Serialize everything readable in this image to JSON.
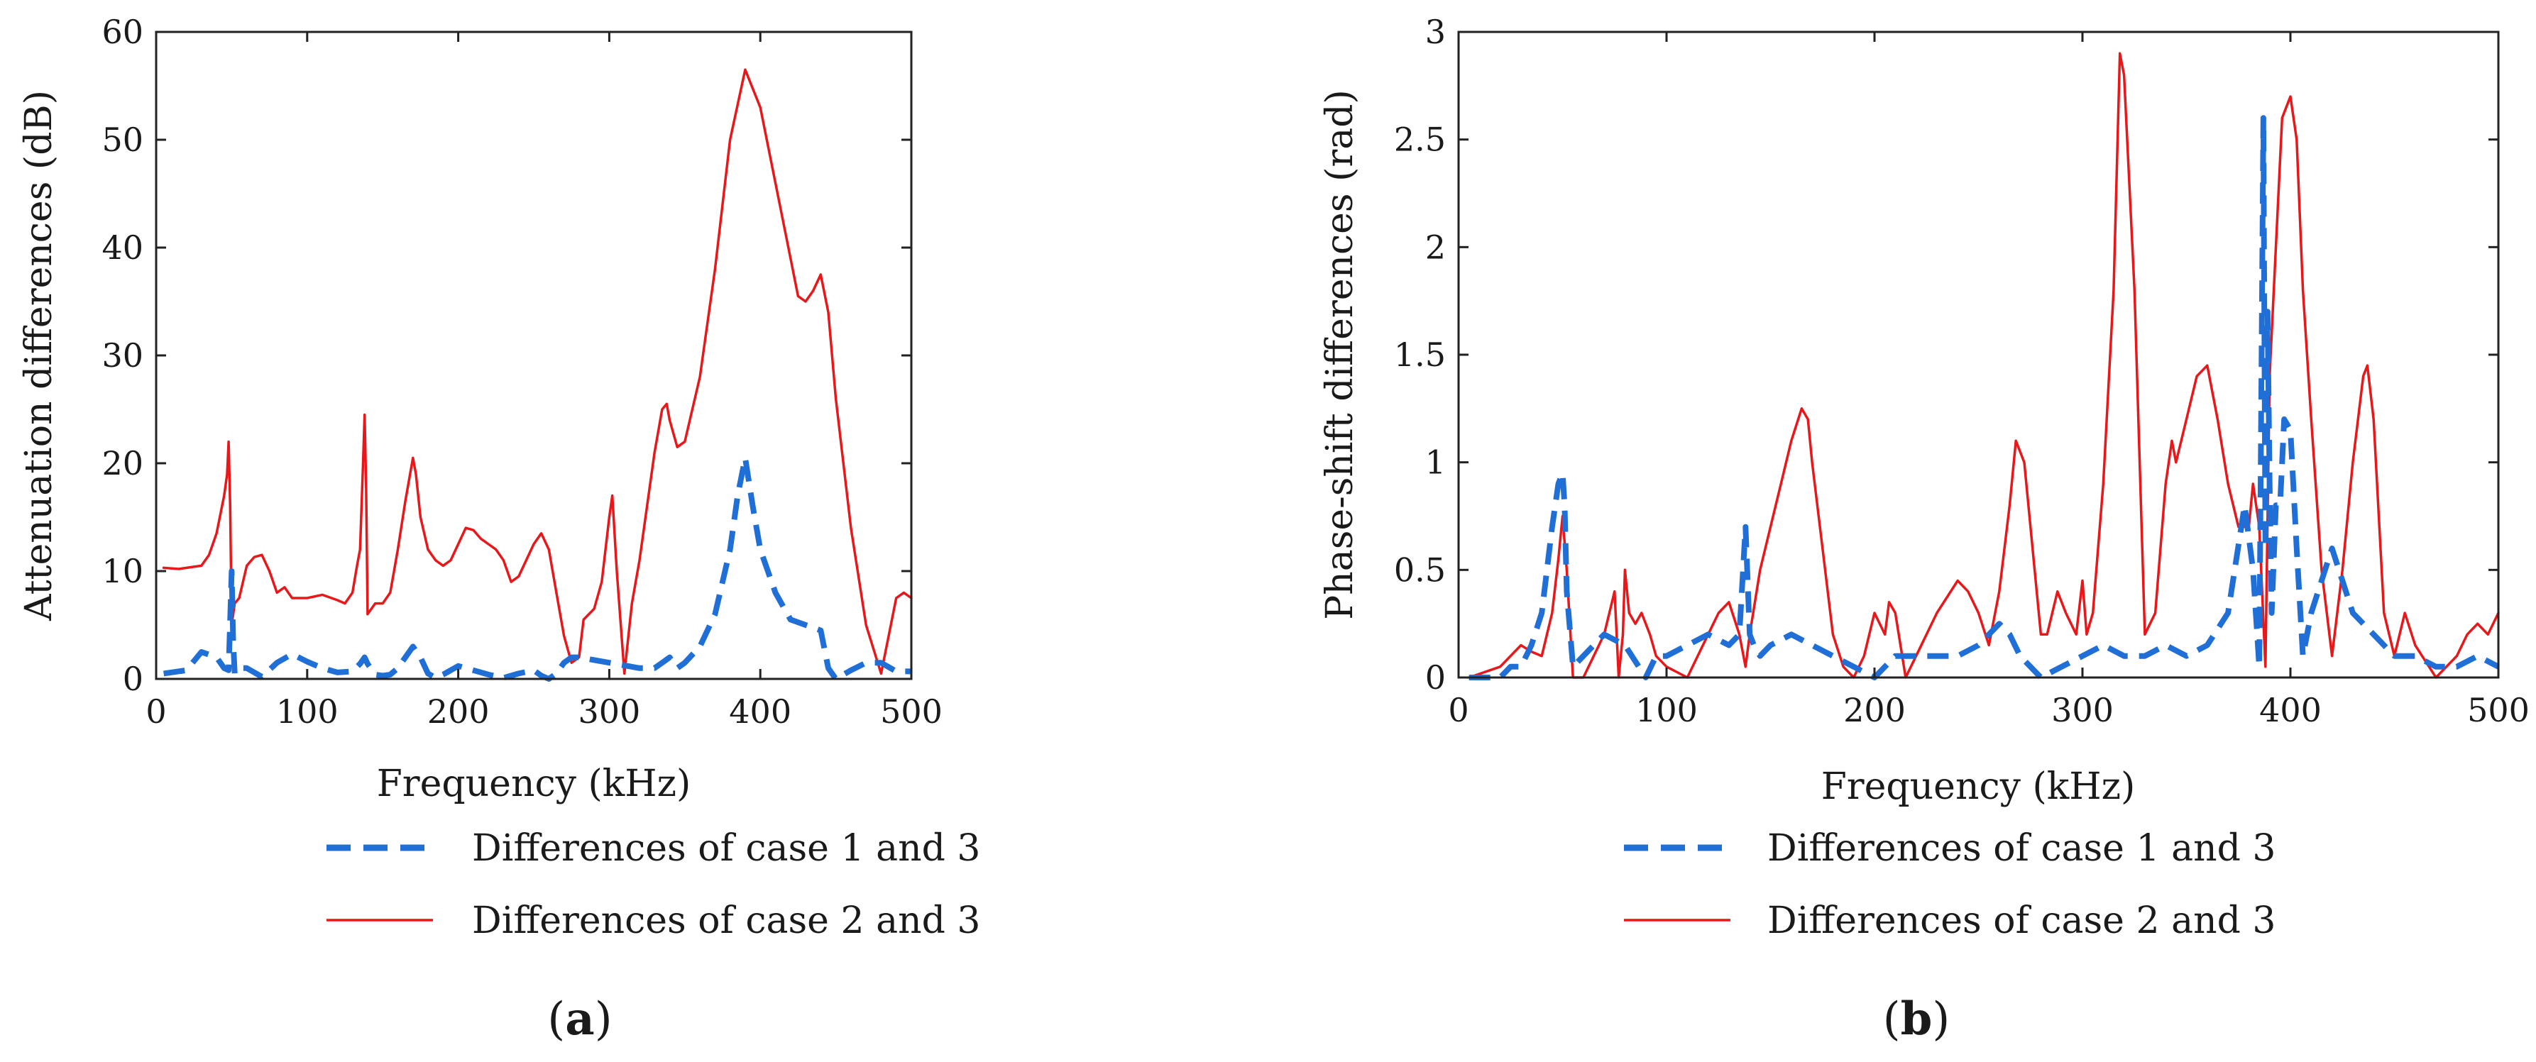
{
  "chart_data": [
    {
      "type": "line",
      "caption": "(a)",
      "caption_letter": "a",
      "xlabel": "Frequency (kHz)",
      "ylabel": "Attenuation differences (dB)",
      "xlim": [
        0,
        500
      ],
      "ylim": [
        0,
        60
      ],
      "xticks": [
        0,
        100,
        200,
        300,
        400,
        500
      ],
      "yticks": [
        0,
        10,
        20,
        30,
        40,
        50,
        60
      ],
      "ytick_labels": [
        "0",
        "10",
        "20",
        "30",
        "40",
        "50",
        "60"
      ],
      "legend_position": "below",
      "series": [
        {
          "name": "Differences of case 1 and 3",
          "color": "#1f6fd6",
          "style": "dashed",
          "x": [
            5,
            20,
            30,
            40,
            45,
            48,
            50,
            51,
            52,
            55,
            60,
            70,
            80,
            90,
            100,
            110,
            120,
            130,
            135,
            138,
            140,
            145,
            150,
            155,
            160,
            165,
            170,
            175,
            180,
            185,
            190,
            200,
            210,
            220,
            230,
            240,
            250,
            255,
            260,
            265,
            270,
            275,
            280,
            300,
            320,
            330,
            335,
            340,
            345,
            350,
            360,
            370,
            380,
            385,
            390,
            395,
            400,
            410,
            420,
            430,
            440,
            445,
            450,
            460,
            470,
            480,
            490,
            500
          ],
          "y": [
            0.5,
            0.8,
            2.5,
            2.0,
            1.0,
            0.8,
            10.0,
            3.5,
            0.5,
            1.0,
            1.0,
            0.2,
            1.5,
            2.3,
            1.6,
            1.0,
            0.6,
            0.7,
            1.4,
            2.0,
            1.4,
            0.4,
            0.3,
            0.4,
            1.0,
            2.0,
            3.0,
            2.0,
            0.5,
            0.1,
            0.4,
            1.2,
            0.8,
            0.4,
            0.1,
            0.5,
            0.8,
            0.3,
            0.0,
            0.5,
            1.5,
            2.0,
            2.0,
            1.5,
            1.0,
            1.0,
            1.5,
            2.0,
            1.0,
            1.5,
            3.0,
            6.0,
            12.0,
            17.0,
            20.5,
            16.0,
            12.0,
            8.0,
            5.5,
            5.0,
            4.5,
            1.0,
            0.0,
            0.8,
            1.5,
            1.5,
            0.7,
            0.7
          ]
        },
        {
          "name": "Differences of case 2 and 3",
          "color": "#e8181a",
          "style": "solid",
          "x": [
            5,
            15,
            25,
            30,
            35,
            40,
            45,
            47,
            48,
            49,
            50,
            52,
            55,
            60,
            65,
            70,
            75,
            80,
            85,
            90,
            95,
            100,
            110,
            120,
            125,
            130,
            133,
            135,
            137,
            138,
            139,
            140,
            145,
            150,
            155,
            160,
            165,
            170,
            172,
            175,
            180,
            185,
            190,
            195,
            200,
            205,
            210,
            215,
            220,
            225,
            230,
            235,
            240,
            245,
            250,
            255,
            260,
            265,
            270,
            275,
            280,
            283,
            290,
            295,
            300,
            302,
            305,
            310,
            315,
            320,
            325,
            330,
            335,
            338,
            340,
            345,
            350,
            360,
            370,
            380,
            390,
            400,
            410,
            420,
            425,
            430,
            435,
            440,
            445,
            450,
            460,
            470,
            480,
            485,
            490,
            495,
            500
          ],
          "y": [
            10.3,
            10.2,
            10.4,
            10.5,
            11.5,
            13.5,
            17.0,
            19.0,
            22.0,
            16.0,
            5.0,
            7.0,
            7.5,
            10.5,
            11.3,
            11.5,
            10.0,
            8.0,
            8.5,
            7.5,
            7.5,
            7.5,
            7.8,
            7.3,
            7.0,
            8.0,
            10.5,
            12.0,
            20.0,
            24.5,
            18.0,
            6.0,
            7.0,
            7.0,
            8.0,
            12.0,
            16.5,
            20.5,
            19.0,
            15.0,
            12.0,
            11.0,
            10.5,
            11.0,
            12.5,
            14.0,
            13.8,
            13.0,
            12.5,
            12.0,
            11.0,
            9.0,
            9.5,
            11.0,
            12.5,
            13.5,
            12.0,
            8.0,
            4.0,
            1.5,
            2.0,
            5.5,
            6.5,
            9.0,
            15.0,
            17.0,
            10.0,
            0.5,
            7.0,
            11.0,
            16.0,
            21.0,
            25.0,
            25.5,
            24.0,
            21.5,
            22.0,
            28.0,
            38.0,
            50.0,
            56.5,
            53.0,
            46.0,
            39.0,
            35.5,
            35.0,
            36.0,
            37.5,
            34.0,
            26.0,
            14.0,
            5.0,
            0.5,
            4.0,
            7.5,
            8.0,
            7.5
          ]
        }
      ]
    },
    {
      "type": "line",
      "caption": "(b)",
      "caption_letter": "b",
      "xlabel": "Frequency (kHz)",
      "ylabel": "Phase-shift differences (rad)",
      "xlim": [
        0,
        500
      ],
      "ylim": [
        0,
        3
      ],
      "xticks": [
        0,
        100,
        200,
        300,
        400,
        500
      ],
      "yticks": [
        0,
        0.5,
        1,
        1.5,
        2,
        2.5,
        3
      ],
      "ytick_labels": [
        "0",
        "0.5",
        "1",
        "1.5",
        "2",
        "2.5",
        "3"
      ],
      "legend_position": "below",
      "series": [
        {
          "name": "Differences of case 1 and 3",
          "color": "#1f6fd6",
          "style": "dashed",
          "x": [
            5,
            15,
            20,
            25,
            30,
            35,
            40,
            45,
            48,
            50,
            51,
            52,
            55,
            60,
            70,
            80,
            90,
            95,
            100,
            110,
            120,
            130,
            135,
            138,
            140,
            142,
            145,
            150,
            160,
            170,
            180,
            190,
            200,
            210,
            220,
            230,
            240,
            250,
            260,
            265,
            270,
            280,
            290,
            300,
            310,
            320,
            330,
            340,
            350,
            360,
            370,
            378,
            382,
            385,
            387,
            388,
            389,
            390,
            391,
            393,
            395,
            397,
            400,
            403,
            406,
            410,
            420,
            430,
            440,
            450,
            460,
            470,
            480,
            490,
            500
          ],
          "y": [
            0.0,
            0.0,
            0.0,
            0.05,
            0.05,
            0.15,
            0.3,
            0.7,
            0.9,
            0.95,
            0.8,
            0.4,
            0.05,
            0.1,
            0.2,
            0.15,
            0.0,
            0.1,
            0.1,
            0.15,
            0.2,
            0.15,
            0.2,
            0.7,
            0.2,
            0.15,
            0.1,
            0.15,
            0.2,
            0.15,
            0.1,
            0.05,
            0.0,
            0.1,
            0.1,
            0.1,
            0.1,
            0.15,
            0.25,
            0.2,
            0.1,
            0.0,
            0.05,
            0.1,
            0.15,
            0.1,
            0.1,
            0.15,
            0.1,
            0.15,
            0.3,
            0.8,
            0.5,
            0.05,
            2.6,
            0.6,
            1.7,
            0.9,
            0.3,
            0.8,
            0.8,
            1.2,
            1.15,
            0.6,
            0.1,
            0.3,
            0.6,
            0.3,
            0.2,
            0.1,
            0.1,
            0.05,
            0.05,
            0.1,
            0.05
          ]
        },
        {
          "name": "Differences of case 2 and 3",
          "color": "#e8181a",
          "style": "solid",
          "x": [
            5,
            20,
            30,
            35,
            40,
            45,
            48,
            50,
            52,
            55,
            60,
            65,
            70,
            75,
            77,
            79,
            80,
            82,
            85,
            88,
            92,
            95,
            100,
            110,
            115,
            120,
            125,
            130,
            135,
            138,
            140,
            145,
            150,
            155,
            160,
            165,
            168,
            170,
            175,
            180,
            185,
            190,
            195,
            200,
            205,
            207,
            210,
            215,
            220,
            230,
            240,
            245,
            250,
            255,
            260,
            265,
            268,
            272,
            276,
            280,
            283,
            288,
            292,
            297,
            300,
            302,
            305,
            310,
            315,
            318,
            320,
            325,
            330,
            335,
            340,
            343,
            345,
            350,
            355,
            360,
            365,
            370,
            375,
            380,
            382,
            385,
            388,
            390,
            393,
            396,
            400,
            403,
            406,
            410,
            415,
            420,
            425,
            430,
            435,
            437,
            440,
            445,
            450,
            455,
            460,
            470,
            480,
            485,
            490,
            495,
            500
          ],
          "y": [
            0.0,
            0.05,
            0.15,
            0.12,
            0.1,
            0.3,
            0.55,
            0.75,
            0.5,
            0.0,
            0.0,
            0.1,
            0.2,
            0.4,
            0.0,
            0.2,
            0.5,
            0.3,
            0.25,
            0.3,
            0.2,
            0.1,
            0.05,
            0.0,
            0.1,
            0.2,
            0.3,
            0.35,
            0.2,
            0.05,
            0.2,
            0.5,
            0.7,
            0.9,
            1.1,
            1.25,
            1.2,
            1.0,
            0.6,
            0.2,
            0.05,
            0.0,
            0.1,
            0.3,
            0.2,
            0.35,
            0.3,
            0.0,
            0.1,
            0.3,
            0.45,
            0.4,
            0.3,
            0.15,
            0.4,
            0.8,
            1.1,
            1.0,
            0.6,
            0.2,
            0.2,
            0.4,
            0.3,
            0.2,
            0.45,
            0.2,
            0.3,
            0.9,
            1.8,
            2.9,
            2.8,
            1.8,
            0.2,
            0.3,
            0.9,
            1.1,
            1.0,
            1.2,
            1.4,
            1.45,
            1.2,
            0.9,
            0.7,
            0.7,
            0.9,
            0.7,
            0.05,
            1.4,
            2.0,
            2.6,
            2.7,
            2.5,
            1.8,
            1.2,
            0.5,
            0.1,
            0.5,
            1.0,
            1.4,
            1.45,
            1.2,
            0.3,
            0.1,
            0.3,
            0.15,
            0.0,
            0.1,
            0.2,
            0.25,
            0.2,
            0.3
          ]
        }
      ]
    }
  ]
}
